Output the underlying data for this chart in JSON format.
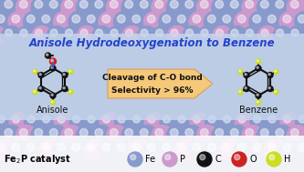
{
  "title": "Anisole Hydrodeoxygenation to Benzene",
  "title_color": "#2244CC",
  "fe_color": "#8899CC",
  "p_color": "#CC99CC",
  "c_color": "#111111",
  "o_color": "#CC2222",
  "h_color": "#CCDD22",
  "arrow_color": "#F5C87A",
  "arrow_edge_color": "#D4A060",
  "panel_color": "#C8D8EE",
  "panel_alpha": 0.82,
  "arrow_text1": "Cleavage of C-O bond",
  "arrow_text2": "Selectivity > 96%",
  "label_anisole": "Anisole",
  "label_benzene": "Benzene",
  "bg_color": "#8899BB",
  "figsize": [
    3.33,
    1.89
  ],
  "dpi": 100
}
